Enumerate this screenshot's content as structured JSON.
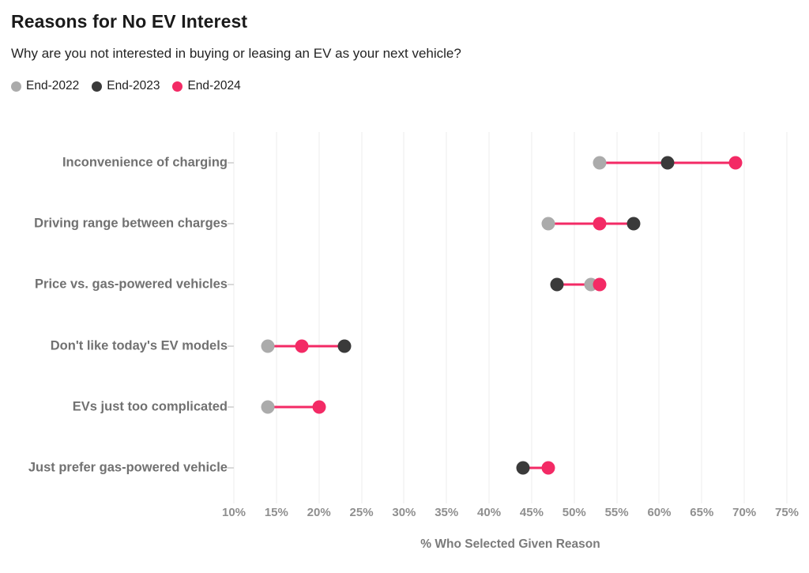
{
  "chart_data": {
    "type": "dumbbell-dot-plot",
    "title": "Reasons for No EV Interest",
    "subtitle": "Why are you not interested in buying or leasing an EV as your next vehicle?",
    "xlabel": "% Who Selected Given Reason",
    "xlim": [
      10,
      75
    ],
    "x_ticks": [
      10,
      15,
      20,
      25,
      30,
      35,
      40,
      45,
      50,
      55,
      60,
      65,
      70,
      75
    ],
    "x_tick_suffix": "%",
    "grid": "vertical-only",
    "legend_position": "top-left",
    "categories": [
      "Inconvenience of charging",
      "Driving range between charges",
      "Price vs. gas-powered vehicles",
      "Don't like today's EV models",
      "EVs just too complicated",
      "Just prefer gas-powered vehicle"
    ],
    "series": [
      {
        "name": "End-2022",
        "color": "#ababab",
        "values": [
          53,
          47,
          52,
          14,
          14,
          null
        ]
      },
      {
        "name": "End-2023",
        "color": "#3a3a3a",
        "values": [
          61,
          57,
          48,
          23,
          null,
          44
        ]
      },
      {
        "name": "End-2024",
        "color": "#f32a65",
        "values": [
          69,
          53,
          53,
          18,
          20,
          47
        ]
      }
    ],
    "connector_color": "#f32a65",
    "style_colors": {
      "background": "#ffffff",
      "gridline": "#ececec",
      "tick_label": "#8f8f8f",
      "axis_title": "#7b7b7b",
      "category_label": "#717171",
      "title": "#1a1a1a",
      "subtitle": "#242424"
    }
  }
}
